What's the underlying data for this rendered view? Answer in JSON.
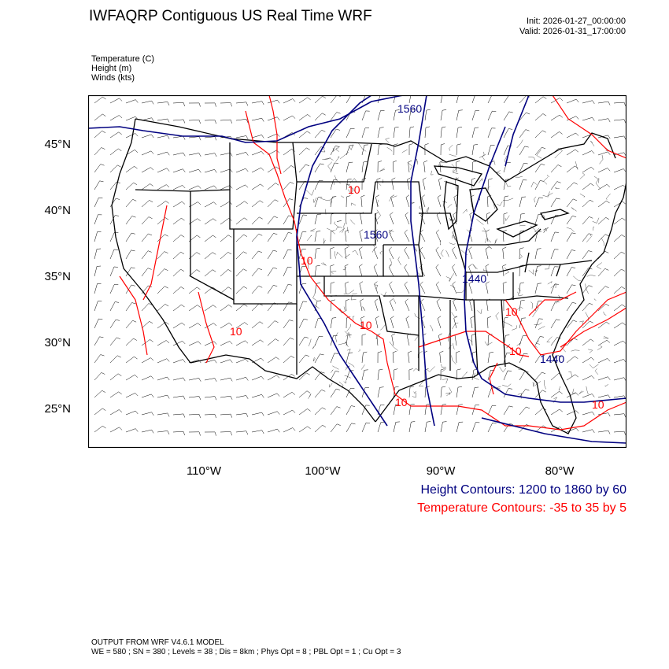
{
  "header": {
    "title": "IWFAQRP Contiguous US Real Time WRF",
    "init": "Init: 2026-01-27_00:00:00",
    "valid": "Valid: 2026-01-31_17:00:00"
  },
  "variables": [
    "Temperature   (C)",
    "Height   (m)",
    "Winds   (kts)"
  ],
  "lat_labels": [
    "45°N",
    "40°N",
    "35°N",
    "30°N",
    "25°N"
  ],
  "lon_labels": [
    "110°W",
    "100°W",
    "90°W",
    "80°W"
  ],
  "contour_labels": {
    "height": [
      "1560",
      "1560",
      "1440",
      "1440"
    ],
    "temperature": [
      "10",
      "10",
      "10",
      "10",
      "10",
      "10",
      "10",
      "10"
    ]
  },
  "legend": {
    "height": "Height Contours: 1200 to 1860 by 60",
    "temperature": "Temperature Contours: -35 to 35 by 5"
  },
  "footer": {
    "line1": "OUTPUT FROM WRF V4.6.1 MODEL",
    "line2": "WE = 580 ; SN = 380 ; Levels = 38 ; Dis = 8km ; Phys Opt = 8 ; PBL Opt = 1 ; Cu Opt = 3"
  },
  "colors": {
    "height_contour": "#000080",
    "temperature_contour": "#ff0000",
    "map_lines": "#000000"
  }
}
